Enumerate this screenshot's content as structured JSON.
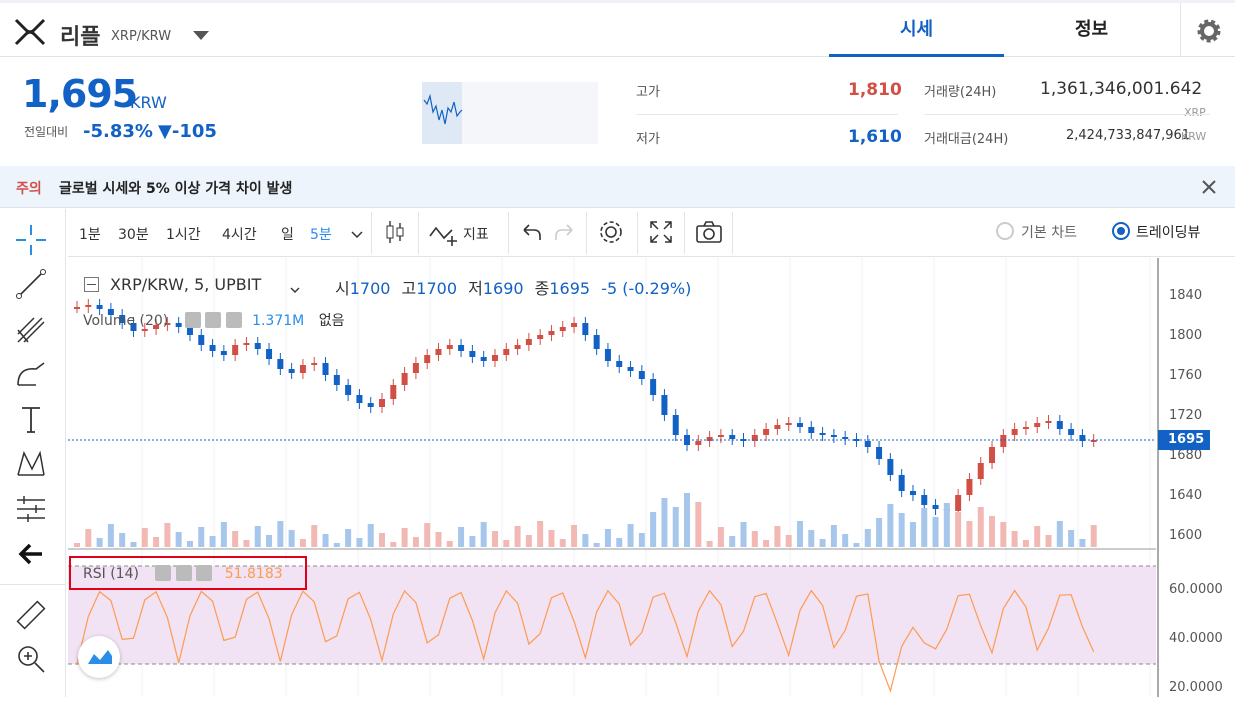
{
  "header": {
    "coin_name": "리플",
    "pair": "XRP/KRW",
    "tabs": [
      {
        "label": "시세"
      },
      {
        "label": "정보"
      }
    ]
  },
  "price": {
    "current": "1,695",
    "unit": "KRW",
    "change_label": "전일대비",
    "change_pct": "-5.83%",
    "change_abs": "▼-105"
  },
  "stats": {
    "high_label": "고가",
    "high": "1,810",
    "low_label": "저가",
    "low": "1,610",
    "vol_label": "거래량(24H)",
    "vol": "1,361,346,001.642",
    "vol_unit": "XRP",
    "amt_label": "거래대금(24H)",
    "amt": "2,424,733,847,961",
    "amt_unit": "KRW"
  },
  "notice": {
    "tag": "주의",
    "text": "글로벌 시세와 5% 이상 가격 차이 발생"
  },
  "toolbar": {
    "intervals": [
      "1분",
      "30분",
      "1시간",
      "4시간",
      "일",
      "5분"
    ],
    "indicator_label": "지표",
    "basic_chart": "기본 차트",
    "tradingview": "트레이딩뷰"
  },
  "chart": {
    "symbol": "XRP/KRW, 5, UPBIT",
    "o_label": "시",
    "o": "1700",
    "h_label": "고",
    "h": "1700",
    "l_label": "저",
    "l": "1690",
    "c_label": "종",
    "c": "1695",
    "chg": "-5 (-0.29%)",
    "volume_label": "Volume (20)",
    "volume_val": "1.371M",
    "volume_ma": "없음",
    "price_ticks": [
      "1840",
      "1800",
      "1760",
      "1720",
      "1680",
      "1640",
      "1600"
    ],
    "last_price": "1695",
    "rsi_label": "RSI (14)",
    "rsi_val": "51.8183",
    "rsi_ticks": [
      "60.0000",
      "40.0000",
      "20.0000"
    ],
    "colors": {
      "up": "#d24f45",
      "down": "#1261c4",
      "rsi": "#ff9a52",
      "rsi_band": "#f1e3f3"
    }
  }
}
